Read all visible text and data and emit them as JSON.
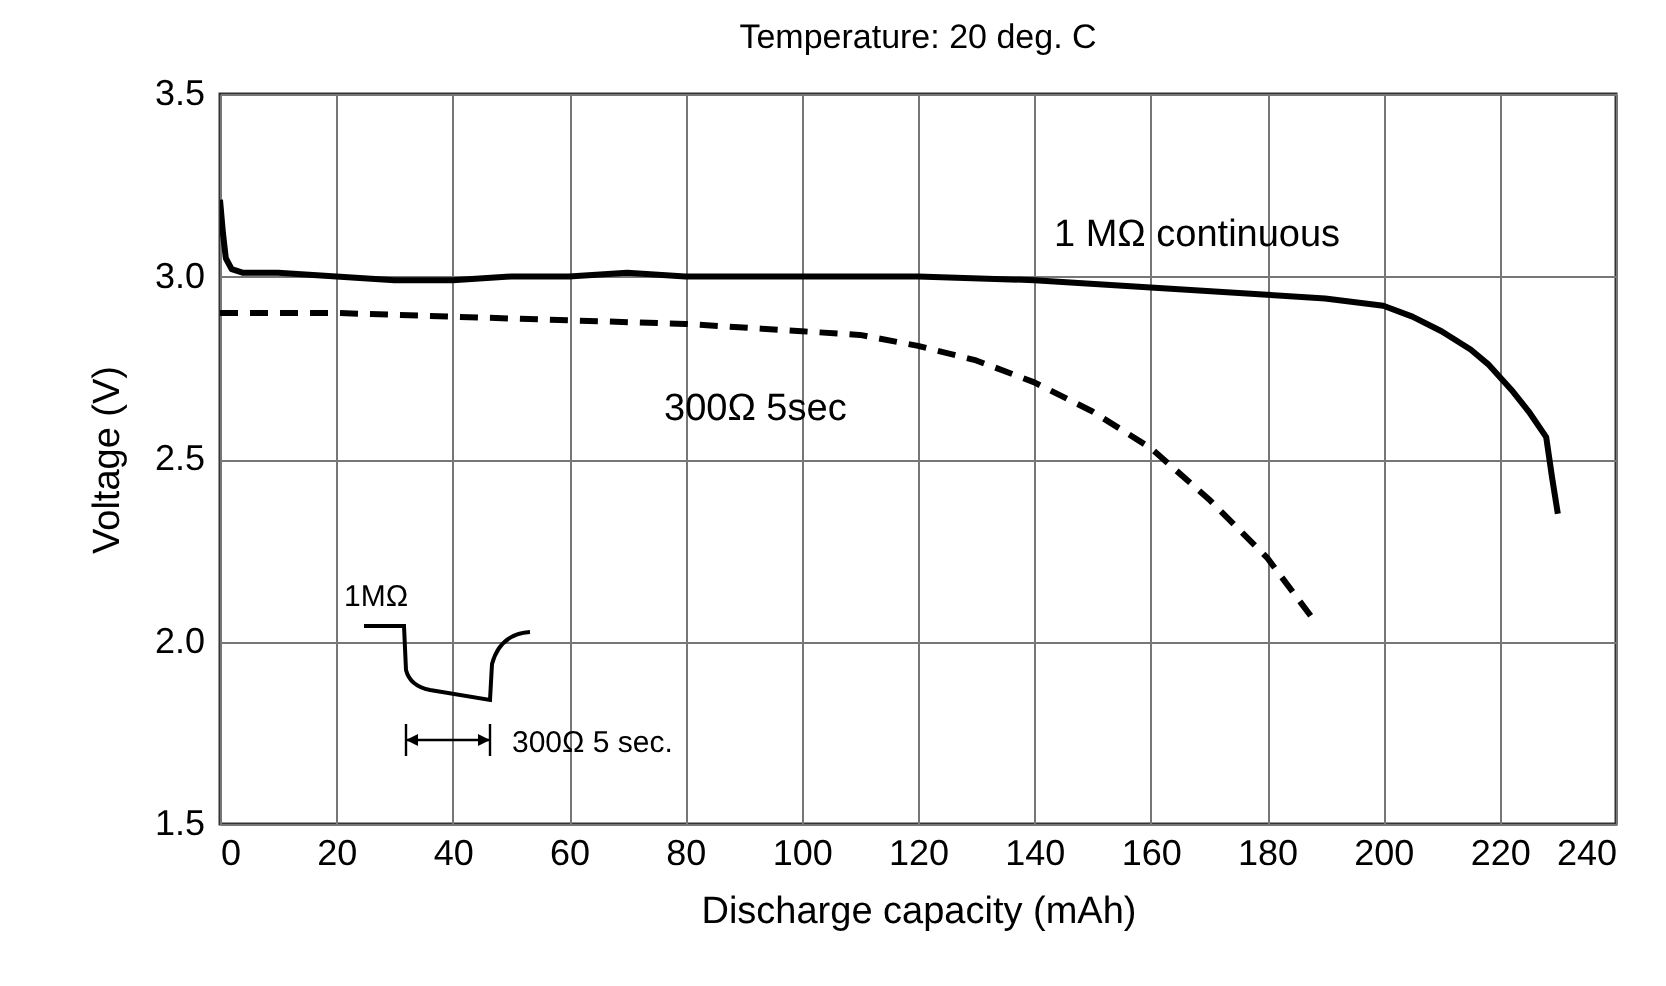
{
  "chart_data": {
    "type": "line",
    "title": "Temperature: 20 deg. C",
    "xlabel": "Discharge capacity (mAh)",
    "ylabel": "Voltage (V)",
    "xlim": [
      0,
      240
    ],
    "xticks": [
      0,
      20,
      40,
      60,
      80,
      100,
      120,
      140,
      160,
      180,
      200,
      220,
      240
    ],
    "ylim": [
      1.5,
      3.5
    ],
    "yticks": [
      {
        "value": 1.5,
        "label": "1.5"
      },
      {
        "value": 2,
        "label": "2.0"
      },
      {
        "value": 2.5,
        "label": "2.5"
      },
      {
        "value": 3,
        "label": "3.0"
      },
      {
        "value": 3.5,
        "label": "3.5"
      }
    ],
    "grid": true,
    "marker": "none",
    "series": [
      {
        "name": "1 MΩ continuous",
        "color": "#000000",
        "line_style": "solid",
        "x": [
          0,
          0.5,
          1,
          2,
          4,
          10,
          20,
          30,
          40,
          50,
          60,
          70,
          80,
          100,
          120,
          140,
          160,
          180,
          190,
          200,
          205,
          210,
          215,
          218,
          222,
          225,
          228,
          229,
          230
        ],
        "values": [
          3.21,
          3.12,
          3.05,
          3.02,
          3.01,
          3.01,
          3.0,
          2.99,
          2.99,
          3.0,
          3.0,
          3.01,
          3.0,
          3.0,
          3.0,
          2.99,
          2.97,
          2.95,
          2.94,
          2.92,
          2.89,
          2.85,
          2.8,
          2.76,
          2.69,
          2.63,
          2.56,
          2.45,
          2.35
        ]
      },
      {
        "name": "300Ω 5sec",
        "color": "#000000",
        "line_style": "dashed",
        "x": [
          0,
          20,
          40,
          60,
          80,
          100,
          110,
          120,
          130,
          140,
          150,
          160,
          170,
          180,
          188
        ],
        "values": [
          2.9,
          2.9,
          2.89,
          2.88,
          2.87,
          2.85,
          2.84,
          2.81,
          2.77,
          2.71,
          2.63,
          2.53,
          2.39,
          2.23,
          2.06
        ]
      }
    ],
    "annotations": [
      "1MΩ",
      "300Ω 5 sec."
    ]
  }
}
